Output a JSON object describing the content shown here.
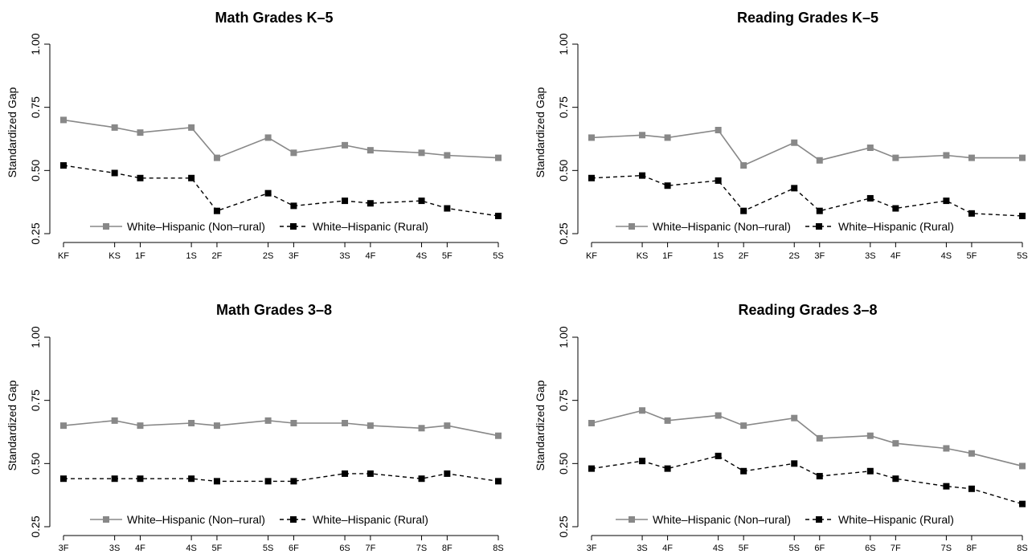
{
  "chart_data": [
    {
      "type": "line",
      "title": "Math Grades K–5",
      "ylabel": "Standardized Gap",
      "ylim": [
        0.25,
        1.0
      ],
      "yticks": [
        "0.25",
        "0.50",
        "0.75",
        "1.00"
      ],
      "x": [
        0,
        2,
        3,
        5,
        6,
        8,
        9,
        11,
        12,
        14,
        15,
        17
      ],
      "xticklabels": [
        "KF",
        "KS",
        "1F",
        "1S",
        "2F",
        "2S",
        "3F",
        "3S",
        "4F",
        "4S",
        "5F",
        "5S"
      ],
      "legend": "bottom",
      "series": [
        {
          "name": "White–Hispanic (Non–rural)",
          "color": "#888888",
          "style": "solid",
          "values": [
            0.7,
            0.67,
            0.65,
            0.67,
            0.55,
            0.63,
            0.57,
            0.6,
            0.58,
            0.57,
            0.56,
            0.55
          ]
        },
        {
          "name": "White–Hispanic (Rural)",
          "color": "#000000",
          "style": "dashed",
          "values": [
            0.52,
            0.49,
            0.47,
            0.47,
            0.34,
            0.41,
            0.36,
            0.38,
            0.37,
            0.38,
            0.35,
            0.32
          ]
        }
      ]
    },
    {
      "type": "line",
      "title": "Reading Grades K–5",
      "ylabel": "Standardized Gap",
      "ylim": [
        0.25,
        1.0
      ],
      "yticks": [
        "0.25",
        "0.50",
        "0.75",
        "1.00"
      ],
      "x": [
        0,
        2,
        3,
        5,
        6,
        8,
        9,
        11,
        12,
        14,
        15,
        17
      ],
      "xticklabels": [
        "KF",
        "KS",
        "1F",
        "1S",
        "2F",
        "2S",
        "3F",
        "3S",
        "4F",
        "4S",
        "5F",
        "5S"
      ],
      "legend": "bottom",
      "series": [
        {
          "name": "White–Hispanic (Non–rural)",
          "color": "#888888",
          "style": "solid",
          "values": [
            0.63,
            0.64,
            0.63,
            0.66,
            0.52,
            0.61,
            0.54,
            0.59,
            0.55,
            0.56,
            0.55,
            0.55
          ]
        },
        {
          "name": "White–Hispanic (Rural)",
          "color": "#000000",
          "style": "dashed",
          "values": [
            0.47,
            0.48,
            0.44,
            0.46,
            0.34,
            0.43,
            0.34,
            0.39,
            0.35,
            0.38,
            0.33,
            0.32
          ]
        }
      ]
    },
    {
      "type": "line",
      "title": "Math Grades 3–8",
      "ylabel": "Standardized Gap",
      "ylim": [
        0.25,
        1.0
      ],
      "yticks": [
        "0.25",
        "0.50",
        "0.75",
        "1.00"
      ],
      "x": [
        0,
        2,
        3,
        5,
        6,
        8,
        9,
        11,
        12,
        14,
        15,
        17
      ],
      "xticklabels": [
        "3F",
        "3S",
        "4F",
        "4S",
        "5F",
        "5S",
        "6F",
        "6S",
        "7F",
        "7S",
        "8F",
        "8S"
      ],
      "legend": "bottom",
      "series": [
        {
          "name": "White–Hispanic (Non–rural)",
          "color": "#888888",
          "style": "solid",
          "values": [
            0.65,
            0.67,
            0.65,
            0.66,
            0.65,
            0.67,
            0.66,
            0.66,
            0.65,
            0.64,
            0.65,
            0.61
          ]
        },
        {
          "name": "White–Hispanic (Rural)",
          "color": "#000000",
          "style": "dashed",
          "values": [
            0.44,
            0.44,
            0.44,
            0.44,
            0.43,
            0.43,
            0.43,
            0.46,
            0.46,
            0.44,
            0.46,
            0.43
          ]
        }
      ]
    },
    {
      "type": "line",
      "title": "Reading Grades 3–8",
      "ylabel": "Standardized Gap",
      "ylim": [
        0.25,
        1.0
      ],
      "yticks": [
        "0.25",
        "0.50",
        "0.75",
        "1.00"
      ],
      "x": [
        0,
        2,
        3,
        5,
        6,
        8,
        9,
        11,
        12,
        14,
        15,
        17
      ],
      "xticklabels": [
        "3F",
        "3S",
        "4F",
        "4S",
        "5F",
        "5S",
        "6F",
        "6S",
        "7F",
        "7S",
        "8F",
        "8S"
      ],
      "legend": "bottom",
      "series": [
        {
          "name": "White–Hispanic (Non–rural)",
          "color": "#888888",
          "style": "solid",
          "values": [
            0.66,
            0.71,
            0.67,
            0.69,
            0.65,
            0.68,
            0.6,
            0.61,
            0.58,
            0.56,
            0.54,
            0.49
          ]
        },
        {
          "name": "White–Hispanic (Rural)",
          "color": "#000000",
          "style": "dashed",
          "values": [
            0.48,
            0.51,
            0.48,
            0.53,
            0.47,
            0.5,
            0.45,
            0.47,
            0.44,
            0.41,
            0.4,
            0.34
          ]
        }
      ]
    }
  ]
}
